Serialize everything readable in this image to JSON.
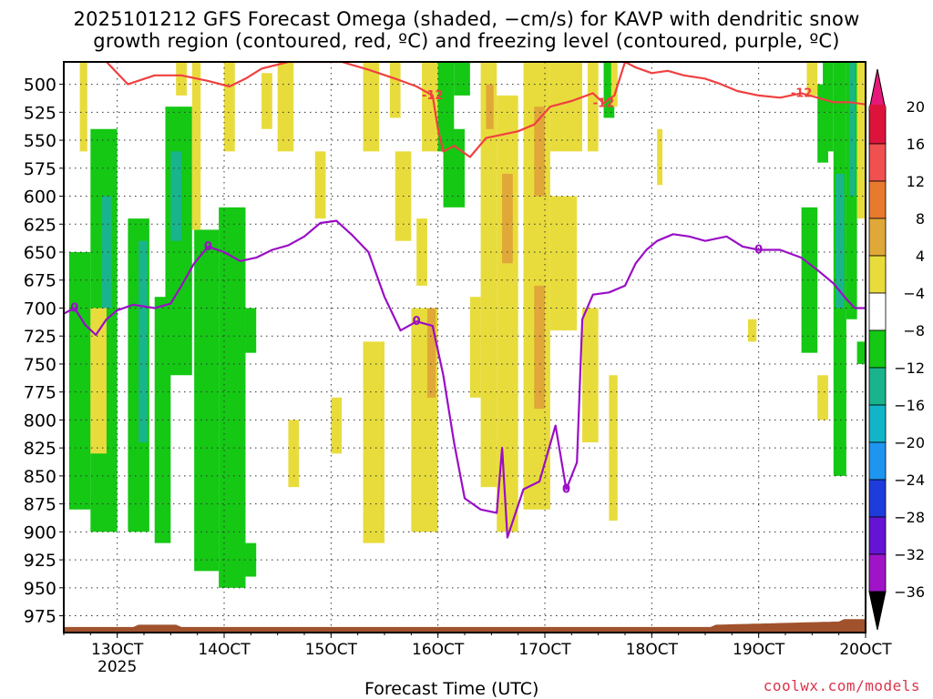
{
  "title_line1": "2025101212 GFS Forecast Omega (shaded, −cm/s) for KAVP with dendritic snow",
  "title_line2": "growth region (contoured, red, ºC) and freezing level (contoured, purple, ºC)",
  "x_axis_title": "Forecast Time (UTC)",
  "credit": "coolwx.com/models",
  "chart_data": {
    "type": "heatmap",
    "title": "2025101212 GFS Forecast Omega (shaded, −cm/s) for KAVP",
    "xlabel": "Forecast Time (UTC)",
    "ylabel": "Pressure (hPa)",
    "x_range_days": [
      12.5,
      20.0
    ],
    "x_ticks": [
      {
        "value": 13,
        "label": "13OCT",
        "sublabel": "2025"
      },
      {
        "value": 14,
        "label": "14OCT"
      },
      {
        "value": 15,
        "label": "15OCT"
      },
      {
        "value": 16,
        "label": "16OCT"
      },
      {
        "value": 17,
        "label": "17OCT"
      },
      {
        "value": 18,
        "label": "18OCT"
      },
      {
        "value": 19,
        "label": "19OCT"
      },
      {
        "value": 20,
        "label": "20OCT"
      }
    ],
    "y_range": [
      480,
      990
    ],
    "y_ticks": [
      500,
      525,
      550,
      575,
      600,
      625,
      650,
      675,
      700,
      725,
      750,
      775,
      800,
      825,
      850,
      875,
      900,
      925,
      950,
      975
    ],
    "colorbar": {
      "labels": [
        "20",
        "16",
        "12",
        "8",
        "4",
        "−4",
        "−8",
        "−12",
        "−16",
        "−20",
        "−24",
        "−28",
        "−32",
        "−36"
      ],
      "colors": [
        "#dc143c",
        "#f05050",
        "#e87a2e",
        "#e0a838",
        "#e8dc3c",
        "#ffffff",
        "#14c814",
        "#1ab48c",
        "#14b4c8",
        "#1e96f0",
        "#1e3cdc",
        "#6414d2",
        "#a014c8",
        "#aaaaaa"
      ],
      "top_color": "#e6197a",
      "bottom_color": "#000000"
    },
    "omega_regions": [
      {
        "x0": 12.55,
        "x1": 12.75,
        "p0": 650,
        "p1": 880,
        "value": -8
      },
      {
        "x0": 12.75,
        "x1": 13.0,
        "p0": 540,
        "p1": 900,
        "value": -8
      },
      {
        "x0": 12.85,
        "x1": 12.95,
        "p0": 600,
        "p1": 700,
        "value": -12
      },
      {
        "x0": 13.1,
        "x1": 13.3,
        "p0": 620,
        "p1": 900,
        "value": -8
      },
      {
        "x0": 13.2,
        "x1": 13.28,
        "p0": 640,
        "p1": 820,
        "value": -12
      },
      {
        "x0": 13.35,
        "x1": 13.5,
        "p0": 690,
        "p1": 910,
        "value": -8
      },
      {
        "x0": 13.45,
        "x1": 13.7,
        "p0": 520,
        "p1": 760,
        "value": -8
      },
      {
        "x0": 13.5,
        "x1": 13.6,
        "p0": 560,
        "p1": 640,
        "value": -12
      },
      {
        "x0": 13.72,
        "x1": 13.95,
        "p0": 630,
        "p1": 935,
        "value": -8
      },
      {
        "x0": 13.95,
        "x1": 14.2,
        "p0": 610,
        "p1": 950,
        "value": -8
      },
      {
        "x0": 14.2,
        "x1": 14.3,
        "p0": 910,
        "p1": 940,
        "value": -8
      },
      {
        "x0": 14.2,
        "x1": 14.3,
        "p0": 700,
        "p1": 740,
        "value": -8
      },
      {
        "x0": 12.65,
        "x1": 12.72,
        "p0": 480,
        "p1": 560,
        "value": 4
      },
      {
        "x0": 12.75,
        "x1": 12.9,
        "p0": 700,
        "p1": 830,
        "value": 4
      },
      {
        "x0": 13.55,
        "x1": 13.65,
        "p0": 480,
        "p1": 510,
        "value": 4
      },
      {
        "x0": 13.7,
        "x1": 13.78,
        "p0": 480,
        "p1": 630,
        "value": 4
      },
      {
        "x0": 14.0,
        "x1": 14.1,
        "p0": 480,
        "p1": 560,
        "value": 4
      },
      {
        "x0": 14.35,
        "x1": 14.45,
        "p0": 490,
        "p1": 540,
        "value": 4
      },
      {
        "x0": 14.5,
        "x1": 14.65,
        "p0": 480,
        "p1": 560,
        "value": 4
      },
      {
        "x0": 14.85,
        "x1": 14.95,
        "p0": 560,
        "p1": 620,
        "value": 4
      },
      {
        "x0": 14.6,
        "x1": 14.7,
        "p0": 800,
        "p1": 860,
        "value": 4
      },
      {
        "x0": 15.3,
        "x1": 15.5,
        "p0": 730,
        "p1": 910,
        "value": 4
      },
      {
        "x0": 15.0,
        "x1": 15.1,
        "p0": 780,
        "p1": 830,
        "value": 4
      },
      {
        "x0": 15.6,
        "x1": 15.75,
        "p0": 560,
        "p1": 640,
        "value": 4
      },
      {
        "x0": 15.75,
        "x1": 16.0,
        "p0": 700,
        "p1": 900,
        "value": 4
      },
      {
        "x0": 15.8,
        "x1": 15.9,
        "p0": 620,
        "p1": 680,
        "value": 4
      },
      {
        "x0": 15.85,
        "x1": 16.05,
        "p0": 480,
        "p1": 560,
        "value": 4
      },
      {
        "x0": 15.55,
        "x1": 15.65,
        "p0": 480,
        "p1": 530,
        "value": 4
      },
      {
        "x0": 15.9,
        "x1": 15.98,
        "p0": 700,
        "p1": 780,
        "value": 8
      },
      {
        "x0": 15.3,
        "x1": 15.45,
        "p0": 480,
        "p1": 560,
        "value": 4
      },
      {
        "x0": 16.0,
        "x1": 16.15,
        "p0": 480,
        "p1": 560,
        "value": -8
      },
      {
        "x0": 16.05,
        "x1": 16.25,
        "p0": 540,
        "p1": 610,
        "value": -8
      },
      {
        "x0": 16.15,
        "x1": 16.3,
        "p0": 480,
        "p1": 510,
        "value": -8
      },
      {
        "x0": 16.4,
        "x1": 16.55,
        "p0": 480,
        "p1": 860,
        "value": 4
      },
      {
        "x0": 16.45,
        "x1": 16.52,
        "p0": 500,
        "p1": 540,
        "value": 8
      },
      {
        "x0": 16.55,
        "x1": 16.75,
        "p0": 510,
        "p1": 900,
        "value": 4
      },
      {
        "x0": 16.6,
        "x1": 16.7,
        "p0": 580,
        "p1": 660,
        "value": 8
      },
      {
        "x0": 16.8,
        "x1": 17.05,
        "p0": 480,
        "p1": 880,
        "value": 4
      },
      {
        "x0": 16.9,
        "x1": 17.0,
        "p0": 520,
        "p1": 600,
        "value": 8
      },
      {
        "x0": 16.9,
        "x1": 17.0,
        "p0": 680,
        "p1": 790,
        "value": 8
      },
      {
        "x0": 17.05,
        "x1": 17.35,
        "p0": 480,
        "p1": 560,
        "value": 4
      },
      {
        "x0": 17.05,
        "x1": 17.3,
        "p0": 600,
        "p1": 720,
        "value": 4
      },
      {
        "x0": 17.35,
        "x1": 17.5,
        "p0": 700,
        "p1": 820,
        "value": 4
      },
      {
        "x0": 17.55,
        "x1": 17.65,
        "p0": 480,
        "p1": 530,
        "value": -8
      },
      {
        "x0": 17.6,
        "x1": 17.68,
        "p0": 760,
        "p1": 890,
        "value": 4
      },
      {
        "x0": 17.62,
        "x1": 17.68,
        "p0": 480,
        "p1": 520,
        "value": 4
      },
      {
        "x0": 18.05,
        "x1": 18.1,
        "p0": 540,
        "p1": 590,
        "value": 4
      },
      {
        "x0": 18.9,
        "x1": 18.98,
        "p0": 710,
        "p1": 730,
        "value": 4
      },
      {
        "x0": 19.45,
        "x1": 19.55,
        "p0": 480,
        "p1": 510,
        "value": 4
      },
      {
        "x0": 19.55,
        "x1": 19.65,
        "p0": 500,
        "p1": 570,
        "value": -8
      },
      {
        "x0": 19.4,
        "x1": 19.55,
        "p0": 610,
        "p1": 740,
        "value": -8
      },
      {
        "x0": 19.6,
        "x1": 19.7,
        "p0": 480,
        "p1": 560,
        "value": -8
      },
      {
        "x0": 19.7,
        "x1": 19.82,
        "p0": 480,
        "p1": 850,
        "value": -8
      },
      {
        "x0": 19.72,
        "x1": 19.8,
        "p0": 580,
        "p1": 700,
        "value": -12
      },
      {
        "x0": 19.82,
        "x1": 19.92,
        "p0": 480,
        "p1": 710,
        "value": -8
      },
      {
        "x0": 19.85,
        "x1": 19.9,
        "p0": 480,
        "p1": 600,
        "value": -12
      },
      {
        "x0": 19.92,
        "x1": 20.0,
        "p0": 480,
        "p1": 620,
        "value": 4
      },
      {
        "x0": 19.55,
        "x1": 19.65,
        "p0": 760,
        "p1": 800,
        "value": 4
      },
      {
        "x0": 19.92,
        "x1": 20.0,
        "p0": 730,
        "p1": 750,
        "value": -8
      },
      {
        "x0": 16.3,
        "x1": 16.4,
        "p0": 690,
        "p1": 780,
        "value": 4
      },
      {
        "x0": 17.4,
        "x1": 17.5,
        "p0": 480,
        "p1": 560,
        "value": 4
      }
    ],
    "dgz_minus12C_contour": {
      "label": "-12",
      "points": [
        [
          12.9,
          480
        ],
        [
          13.1,
          500
        ],
        [
          13.35,
          492
        ],
        [
          13.6,
          492
        ],
        [
          13.85,
          497
        ],
        [
          14.05,
          502
        ],
        [
          14.2,
          495
        ],
        [
          14.35,
          486
        ],
        [
          14.6,
          480
        ],
        [
          15.1,
          480
        ],
        [
          15.35,
          487
        ],
        [
          15.6,
          495
        ],
        [
          15.8,
          502
        ],
        [
          15.95,
          510
        ],
        [
          16.0,
          540
        ],
        [
          16.05,
          560
        ],
        [
          16.15,
          555
        ],
        [
          16.3,
          565
        ],
        [
          16.45,
          548
        ],
        [
          16.6,
          545
        ],
        [
          16.75,
          542
        ],
        [
          16.9,
          536
        ],
        [
          17.05,
          520
        ],
        [
          17.25,
          515
        ],
        [
          17.45,
          508
        ],
        [
          17.55,
          517
        ],
        [
          17.65,
          510
        ],
        [
          17.75,
          480
        ],
        [
          17.85,
          485
        ],
        [
          18.0,
          490
        ],
        [
          18.15,
          488
        ],
        [
          18.3,
          492
        ],
        [
          18.5,
          495
        ],
        [
          18.65,
          500
        ],
        [
          18.8,
          506
        ],
        [
          19.0,
          510
        ],
        [
          19.2,
          512
        ],
        [
          19.4,
          508
        ],
        [
          19.55,
          512
        ],
        [
          19.7,
          516
        ],
        [
          19.85,
          516
        ],
        [
          20.0,
          518
        ]
      ]
    },
    "freezing_level_0C_contour": {
      "label": "0",
      "points": [
        [
          12.5,
          705
        ],
        [
          12.6,
          700
        ],
        [
          12.7,
          715
        ],
        [
          12.8,
          724
        ],
        [
          12.9,
          710
        ],
        [
          13.0,
          702
        ],
        [
          13.15,
          697
        ],
        [
          13.35,
          700
        ],
        [
          13.5,
          696
        ],
        [
          13.6,
          680
        ],
        [
          13.72,
          660
        ],
        [
          13.85,
          645
        ],
        [
          14.0,
          650
        ],
        [
          14.15,
          658
        ],
        [
          14.3,
          655
        ],
        [
          14.45,
          648
        ],
        [
          14.6,
          644
        ],
        [
          14.75,
          636
        ],
        [
          14.9,
          624
        ],
        [
          15.05,
          622
        ],
        [
          15.2,
          635
        ],
        [
          15.35,
          650
        ],
        [
          15.5,
          690
        ],
        [
          15.65,
          720
        ],
        [
          15.8,
          712
        ],
        [
          15.95,
          716
        ],
        [
          16.05,
          760
        ],
        [
          16.15,
          820
        ],
        [
          16.25,
          870
        ],
        [
          16.4,
          880
        ],
        [
          16.55,
          883
        ],
        [
          16.6,
          825
        ],
        [
          16.65,
          905
        ],
        [
          16.8,
          862
        ],
        [
          16.95,
          855
        ],
        [
          17.1,
          805
        ],
        [
          17.2,
          862
        ],
        [
          17.3,
          838
        ],
        [
          17.35,
          710
        ],
        [
          17.45,
          688
        ],
        [
          17.6,
          686
        ],
        [
          17.75,
          680
        ],
        [
          17.85,
          660
        ],
        [
          17.95,
          648
        ],
        [
          18.05,
          640
        ],
        [
          18.2,
          634
        ],
        [
          18.35,
          636
        ],
        [
          18.5,
          640
        ],
        [
          18.7,
          636
        ],
        [
          18.85,
          645
        ],
        [
          19.0,
          648
        ],
        [
          19.2,
          648
        ],
        [
          19.4,
          655
        ],
        [
          19.55,
          666
        ],
        [
          19.7,
          678
        ],
        [
          19.82,
          692
        ],
        [
          19.9,
          700
        ],
        [
          20.0,
          700
        ]
      ]
    }
  }
}
